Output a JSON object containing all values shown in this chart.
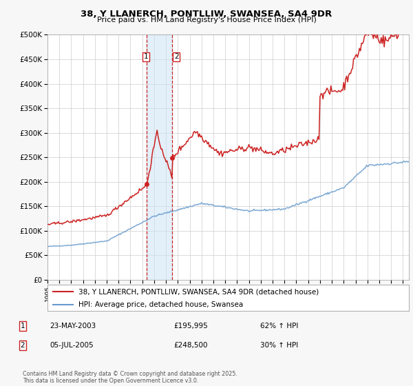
{
  "title": "38, Y LLANERCH, PONTLLIW, SWANSEA, SA4 9DR",
  "subtitle": "Price paid vs. HM Land Registry's House Price Index (HPI)",
  "bg_color": "#f7f7f7",
  "plot_bg_color": "#ffffff",
  "grid_color": "#cccccc",
  "hpi_color": "#6699cc",
  "price_color": "#cc2222",
  "ylim": [
    0,
    500000
  ],
  "yticks": [
    0,
    50000,
    100000,
    150000,
    200000,
    250000,
    300000,
    350000,
    400000,
    450000,
    500000
  ],
  "ytick_labels": [
    "£0",
    "£50K",
    "£100K",
    "£150K",
    "£200K",
    "£250K",
    "£300K",
    "£350K",
    "£400K",
    "£450K",
    "£500K"
  ],
  "xlim_start": 1995.0,
  "xlim_end": 2025.5,
  "purchase1_x": 2003.39,
  "purchase1_y": 195995,
  "purchase2_x": 2005.52,
  "purchase2_y": 248500,
  "legend_line1": "38, Y LLANERCH, PONTLLIW, SWANSEA, SA4 9DR (detached house)",
  "legend_line2": "HPI: Average price, detached house, Swansea",
  "footer": "Contains HM Land Registry data © Crown copyright and database right 2025.\nThis data is licensed under the Open Government Licence v3.0."
}
